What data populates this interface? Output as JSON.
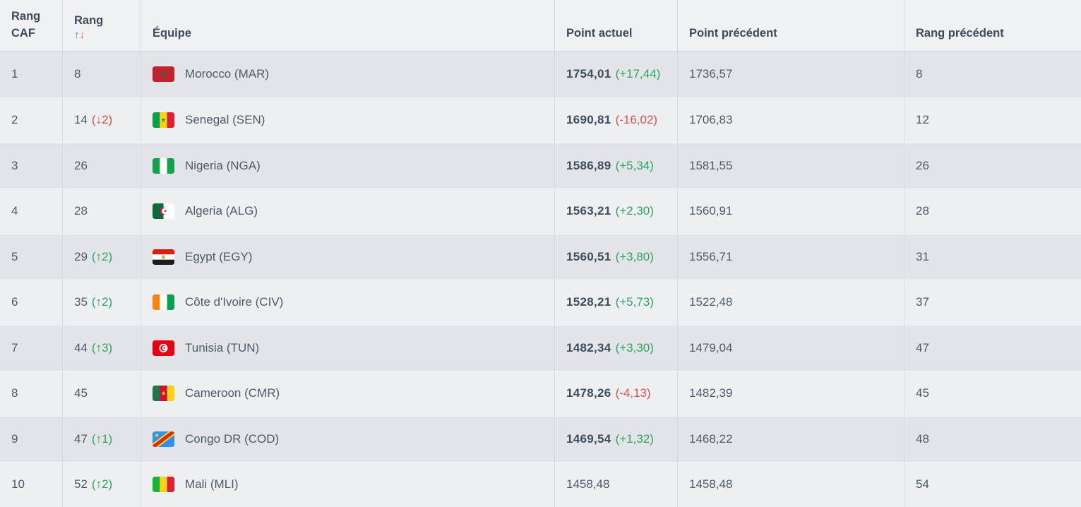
{
  "table": {
    "columns": {
      "rank_caf": "Rang CAF",
      "rank": "Rang",
      "team": "Équipe",
      "points_current": "Point actuel",
      "points_previous": "Point précédent",
      "rank_previous": "Rang précédent"
    },
    "sort": {
      "asc_icon": "↑",
      "desc_icon": "↓"
    },
    "colors": {
      "positive": "#2aa663",
      "negative": "#d4534f",
      "row_odd": "#e2e4e7",
      "row_even": "#edeff1",
      "header_bg": "#f0f1f2",
      "text": "#4c5b6a"
    },
    "rows": [
      {
        "rank_caf": "1",
        "world_rank": "8",
        "rank_delta": "",
        "rank_delta_dir": "",
        "flag": "morocco",
        "team": "Morocco (MAR)",
        "points_current": "1754,01",
        "points_delta": "(+17,44)",
        "points_delta_dir": "up",
        "points_previous": "1736,57",
        "rank_previous": "8"
      },
      {
        "rank_caf": "2",
        "world_rank": "14",
        "rank_delta": "(↓2)",
        "rank_delta_dir": "down",
        "flag": "senegal",
        "team": "Senegal (SEN)",
        "points_current": "1690,81",
        "points_delta": "(-16,02)",
        "points_delta_dir": "down",
        "points_previous": "1706,83",
        "rank_previous": "12"
      },
      {
        "rank_caf": "3",
        "world_rank": "26",
        "rank_delta": "",
        "rank_delta_dir": "",
        "flag": "nigeria",
        "team": "Nigeria (NGA)",
        "points_current": "1586,89",
        "points_delta": "(+5,34)",
        "points_delta_dir": "up",
        "points_previous": "1581,55",
        "rank_previous": "26"
      },
      {
        "rank_caf": "4",
        "world_rank": "28",
        "rank_delta": "",
        "rank_delta_dir": "",
        "flag": "algeria",
        "team": "Algeria (ALG)",
        "points_current": "1563,21",
        "points_delta": "(+2,30)",
        "points_delta_dir": "up",
        "points_previous": "1560,91",
        "rank_previous": "28"
      },
      {
        "rank_caf": "5",
        "world_rank": "29",
        "rank_delta": "(↑2)",
        "rank_delta_dir": "up",
        "flag": "egypt",
        "team": "Egypt (EGY)",
        "points_current": "1560,51",
        "points_delta": "(+3,80)",
        "points_delta_dir": "up",
        "points_previous": "1556,71",
        "rank_previous": "31"
      },
      {
        "rank_caf": "6",
        "world_rank": "35",
        "rank_delta": "(↑2)",
        "rank_delta_dir": "up",
        "flag": "cote-divoire",
        "team": "Côte d'Ivoire (CIV)",
        "points_current": "1528,21",
        "points_delta": "(+5,73)",
        "points_delta_dir": "up",
        "points_previous": "1522,48",
        "rank_previous": "37"
      },
      {
        "rank_caf": "7",
        "world_rank": "44",
        "rank_delta": "(↑3)",
        "rank_delta_dir": "up",
        "flag": "tunisia",
        "team": "Tunisia (TUN)",
        "points_current": "1482,34",
        "points_delta": "(+3,30)",
        "points_delta_dir": "up",
        "points_previous": "1479,04",
        "rank_previous": "47"
      },
      {
        "rank_caf": "8",
        "world_rank": "45",
        "rank_delta": "",
        "rank_delta_dir": "",
        "flag": "cameroon",
        "team": "Cameroon (CMR)",
        "points_current": "1478,26",
        "points_delta": "(-4,13)",
        "points_delta_dir": "down",
        "points_previous": "1482,39",
        "rank_previous": "45"
      },
      {
        "rank_caf": "9",
        "world_rank": "47",
        "rank_delta": "(↑1)",
        "rank_delta_dir": "up",
        "flag": "congo-dr",
        "team": "Congo DR (COD)",
        "points_current": "1469,54",
        "points_delta": "(+1,32)",
        "points_delta_dir": "up",
        "points_previous": "1468,22",
        "rank_previous": "48"
      },
      {
        "rank_caf": "10",
        "world_rank": "52",
        "rank_delta": "(↑2)",
        "rank_delta_dir": "up",
        "flag": "mali",
        "team": "Mali (MLI)",
        "points_current": "1458,48",
        "points_delta": "",
        "points_delta_dir": "",
        "points_previous": "1458,48",
        "rank_previous": "54"
      }
    ]
  }
}
